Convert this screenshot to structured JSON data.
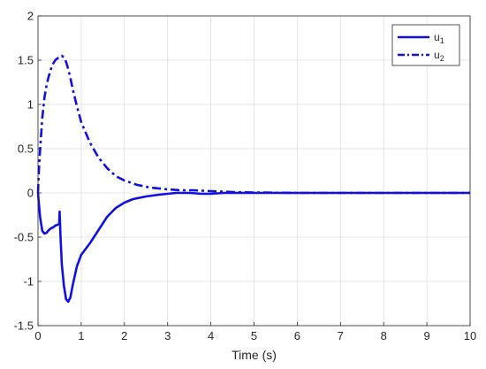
{
  "chart_data": {
    "type": "line",
    "title": "",
    "xlabel": "Time (s)",
    "ylabel": "",
    "xlim": [
      0,
      10
    ],
    "ylim": [
      -1.5,
      2
    ],
    "xticks": [
      "0",
      "1",
      "2",
      "3",
      "4",
      "5",
      "6",
      "7",
      "8",
      "9",
      "10"
    ],
    "yticks": [
      "-1.5",
      "-1",
      "-0.5",
      "0",
      "0.5",
      "1",
      "1.5",
      "2"
    ],
    "grid": true,
    "legend_position": "top-right",
    "series": [
      {
        "name": "u",
        "subscript": "1",
        "style": "solid",
        "color": "#1010e0",
        "x": [
          0,
          0.02,
          0.05,
          0.1,
          0.15,
          0.2,
          0.25,
          0.3,
          0.35,
          0.4,
          0.45,
          0.49,
          0.5,
          0.52,
          0.55,
          0.6,
          0.65,
          0.7,
          0.75,
          0.8,
          0.9,
          1.0,
          1.2,
          1.4,
          1.6,
          1.8,
          2.0,
          2.2,
          2.5,
          2.8,
          3.0,
          3.2,
          3.5,
          3.8,
          4.0,
          4.3,
          4.6,
          5.0,
          6.0,
          7.0,
          8.0,
          9.0,
          10.0
        ],
        "y": [
          0,
          -0.12,
          -0.28,
          -0.43,
          -0.46,
          -0.45,
          -0.42,
          -0.4,
          -0.39,
          -0.37,
          -0.36,
          -0.35,
          -0.21,
          -0.48,
          -0.8,
          -1.05,
          -1.2,
          -1.23,
          -1.18,
          -1.05,
          -0.83,
          -0.7,
          -0.57,
          -0.42,
          -0.27,
          -0.17,
          -0.11,
          -0.07,
          -0.04,
          -0.02,
          -0.01,
          0.0,
          0.0,
          -0.01,
          -0.01,
          0.0,
          0.0,
          0.0,
          0.0,
          0.0,
          0.0,
          0.0,
          0.0
        ]
      },
      {
        "name": "u",
        "subscript": "2",
        "style": "dashdot",
        "color": "#1010e0",
        "x": [
          0,
          0.02,
          0.05,
          0.1,
          0.15,
          0.2,
          0.25,
          0.3,
          0.35,
          0.4,
          0.45,
          0.5,
          0.55,
          0.6,
          0.65,
          0.7,
          0.75,
          0.8,
          0.9,
          1.0,
          1.2,
          1.4,
          1.6,
          1.8,
          2.0,
          2.3,
          2.6,
          3.0,
          3.3,
          3.6,
          4.0,
          4.5,
          5.0,
          6.0,
          7.0,
          8.0,
          9.0,
          10.0
        ],
        "y": [
          0,
          0.25,
          0.5,
          0.85,
          1.08,
          1.22,
          1.32,
          1.4,
          1.46,
          1.5,
          1.52,
          1.54,
          1.55,
          1.53,
          1.48,
          1.4,
          1.3,
          1.18,
          0.98,
          0.8,
          0.57,
          0.4,
          0.28,
          0.19,
          0.14,
          0.09,
          0.06,
          0.04,
          0.03,
          0.03,
          0.02,
          0.01,
          0.005,
          0.0,
          0.0,
          0.0,
          0.0,
          0.0
        ]
      }
    ]
  }
}
